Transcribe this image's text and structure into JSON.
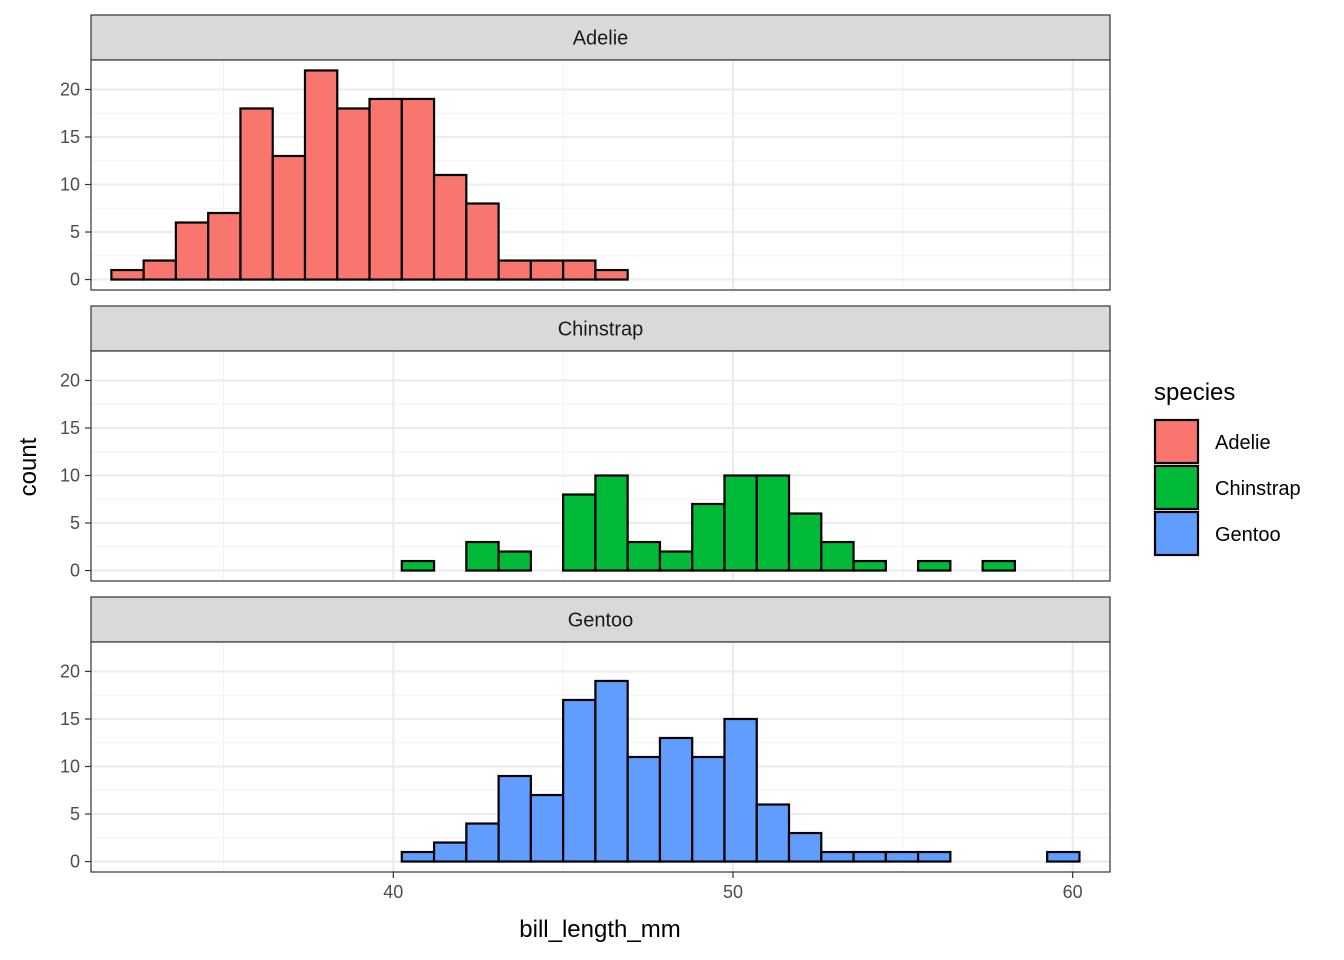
{
  "chart_data": {
    "type": "bar",
    "chart_kind": "histogram",
    "xlabel": "bill_length_mm",
    "ylabel": "count",
    "xlim": [
      31.1,
      61.1
    ],
    "ylim": [
      -1.1,
      23.1
    ],
    "x_ticks": [
      40,
      50,
      60
    ],
    "y_ticks": [
      0,
      5,
      10,
      15,
      20
    ],
    "bin_start": 31.7,
    "bin_width": 0.95,
    "grid": true,
    "legend": {
      "title": "species",
      "placement": "right",
      "entries": [
        {
          "label": "Adelie",
          "color": "#F8766D"
        },
        {
          "label": "Chinstrap",
          "color": "#00BA38"
        },
        {
          "label": "Gentoo",
          "color": "#619CFF"
        }
      ]
    },
    "series": [
      {
        "name": "Adelie",
        "color": "#F8766D",
        "values": [
          1,
          2,
          6,
          7,
          18,
          13,
          22,
          18,
          19,
          19,
          11,
          8,
          2,
          2,
          2,
          1,
          0,
          0,
          0,
          0,
          0,
          0,
          0,
          0,
          0,
          0,
          0,
          0,
          0,
          0
        ]
      },
      {
        "name": "Chinstrap",
        "color": "#00BA38",
        "values": [
          0,
          0,
          0,
          0,
          0,
          0,
          0,
          0,
          0,
          1,
          0,
          3,
          2,
          0,
          8,
          10,
          3,
          2,
          7,
          10,
          10,
          6,
          3,
          1,
          0,
          1,
          0,
          1,
          0,
          0
        ]
      },
      {
        "name": "Gentoo",
        "color": "#619CFF",
        "values": [
          0,
          0,
          0,
          0,
          0,
          0,
          0,
          0,
          0,
          1,
          2,
          4,
          9,
          7,
          17,
          19,
          11,
          13,
          11,
          15,
          6,
          3,
          1,
          1,
          1,
          1,
          0,
          0,
          0,
          1
        ]
      }
    ]
  }
}
